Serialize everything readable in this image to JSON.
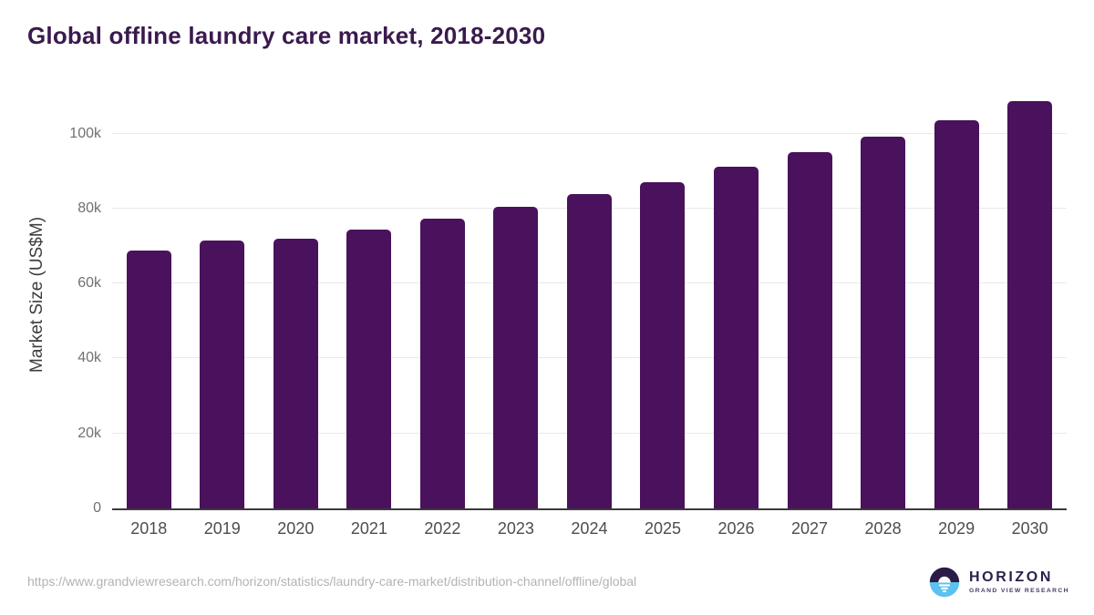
{
  "title": "Global offline laundry care market, 2018-2030",
  "source_url": "https://www.grandviewresearch.com/horizon/statistics/laundry-care-market/distribution-channel/offline/global",
  "branding": {
    "wordmark": "HORIZON",
    "subtitle": "GRAND VIEW RESEARCH",
    "logo_mark": "sun-over-horizon-icon",
    "logo_dark_color": "#2a1c47",
    "logo_blue_color": "#5bc2ef",
    "wordmark_color": "#2d1f4b",
    "subtitle_color": "#473a69"
  },
  "colors": {
    "bar": "#4a115c",
    "title_text": "#3a1a4e",
    "gridline": "#e9e9e9",
    "axis_line": "#3b3b3b",
    "y_tick_text": "#707070",
    "x_tick_text": "#4d4d4d",
    "y_axis_title_text": "#3d3d3d",
    "url_text": "#b3b3b3",
    "background": "#ffffff"
  },
  "chart_data": {
    "type": "bar",
    "title": "Global offline laundry care market, 2018-2030",
    "xlabel": "",
    "ylabel": "Market Size (US$M)",
    "categories": [
      "2018",
      "2019",
      "2020",
      "2021",
      "2022",
      "2023",
      "2024",
      "2025",
      "2026",
      "2027",
      "2028",
      "2029",
      "2030"
    ],
    "values": [
      68800,
      71400,
      71900,
      74400,
      77200,
      80400,
      83900,
      87100,
      91100,
      95000,
      99100,
      103600,
      108600
    ],
    "ylim": [
      0,
      111300
    ],
    "yticks": [
      {
        "value": 0,
        "label": "0"
      },
      {
        "value": 20000,
        "label": "20k"
      },
      {
        "value": 40000,
        "label": "40k"
      },
      {
        "value": 60000,
        "label": "60k"
      },
      {
        "value": 80000,
        "label": "80k"
      },
      {
        "value": 100000,
        "label": "100k"
      }
    ],
    "grid": "horizontal",
    "legend": "none",
    "bar_color": "#4a115c"
  }
}
